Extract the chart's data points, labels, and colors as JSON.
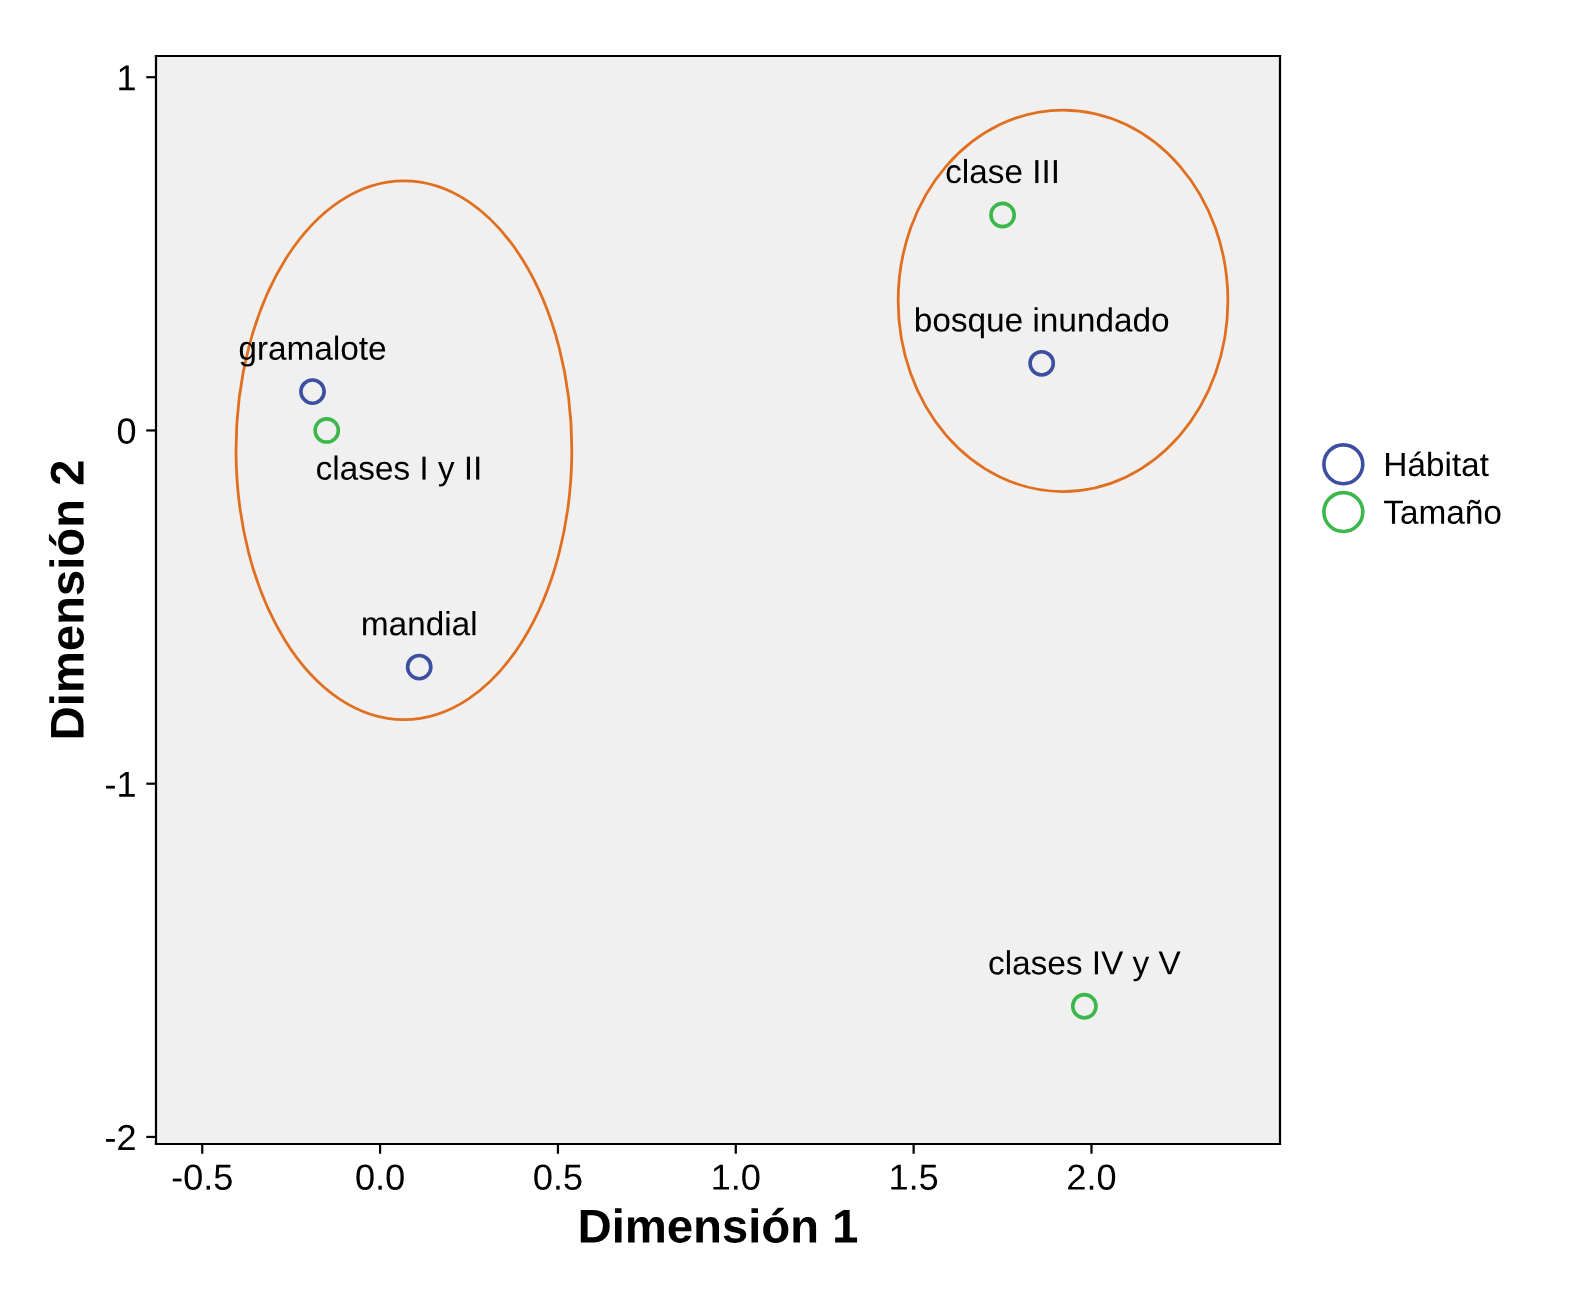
{
  "chart_data": {
    "type": "scatter",
    "xlabel": "Dimensión 1",
    "ylabel": "Dimensión 2",
    "xlim": [
      -0.63,
      2.53
    ],
    "ylim": [
      -2.02,
      1.06
    ],
    "xticks": [
      {
        "value": -0.5,
        "label": "-0.5"
      },
      {
        "value": 0,
        "label": "0.0"
      },
      {
        "value": 0.5,
        "label": "0.5"
      },
      {
        "value": 1,
        "label": "1.0"
      },
      {
        "value": 1.5,
        "label": "1.5"
      },
      {
        "value": 2,
        "label": "2.0"
      }
    ],
    "yticks": [
      -2,
      -1,
      0,
      1
    ],
    "marker": "circle",
    "grid": false,
    "legend": "right",
    "series": [
      {
        "name": "Hábitat",
        "color": "#3c4fa0",
        "x": [
          -0.19,
          0.11,
          1.86
        ],
        "values": [
          0.11,
          -0.67,
          0.19
        ]
      },
      {
        "name": "Tamaño",
        "color": "#3cb84a",
        "x": [
          -0.15,
          1.75,
          1.98
        ],
        "values": [
          0.0,
          0.61,
          -1.63
        ]
      }
    ],
    "annotations": [
      {
        "text": "gramalote",
        "x": -0.19,
        "y": 0.11
      },
      {
        "text": "mandial",
        "x": 0.11,
        "y": -0.67
      },
      {
        "text": "bosque inundado",
        "x": 1.86,
        "y": 0.19
      },
      {
        "text": "clases I y II",
        "x": -0.15,
        "y": 0.0
      },
      {
        "text": "clase III",
        "x": 1.75,
        "y": 0.61
      },
      {
        "text": "clases IV y V",
        "x": 1.98,
        "y": -1.63
      }
    ]
  }
}
